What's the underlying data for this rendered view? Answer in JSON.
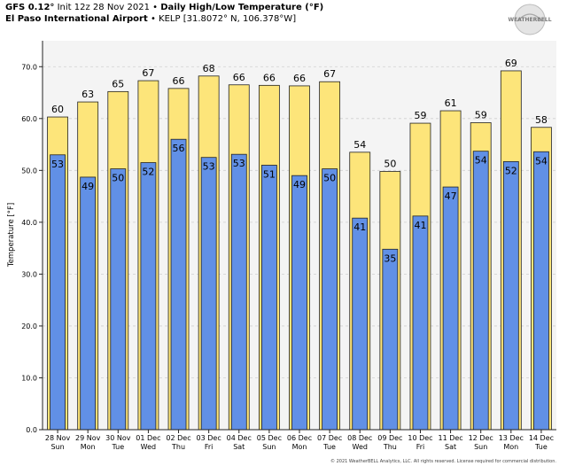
{
  "header": {
    "model": "GFS 0.12°",
    "init": "Init 12z 28 Nov 2021",
    "separator": "•",
    "product": "Daily High/Low Temperature (°F)",
    "station": "El Paso International Airport",
    "station_code": "KELP [31.8072° N, 106.378°W]"
  },
  "logo": {
    "text": "WEATHERBELL"
  },
  "copyright": "© 2021 WeatherBELL Analytics, LLC. All rights reserved. License required for commercial distribution.",
  "colors": {
    "high_bar": "#fde57a",
    "low_bar": "#6190e6",
    "bar_edge": "#222222",
    "plot_bg": "#f4f4f4",
    "grid": "#cfcfcf"
  },
  "chart_data": {
    "type": "bar",
    "title": "Daily High/Low Temperature (°F)",
    "xlabel": "",
    "ylabel": "Temperature [°F]",
    "ylim": [
      0,
      75
    ],
    "yticks": [
      "0.0",
      "10.0",
      "20.0",
      "30.0",
      "40.0",
      "50.0",
      "60.0",
      "70.0"
    ],
    "grid": true,
    "categories": [
      [
        "28 Nov",
        "Sun"
      ],
      [
        "29 Nov",
        "Mon"
      ],
      [
        "30 Nov",
        "Tue"
      ],
      [
        "01 Dec",
        "Wed"
      ],
      [
        "02 Dec",
        "Thu"
      ],
      [
        "03 Dec",
        "Fri"
      ],
      [
        "04 Dec",
        "Sat"
      ],
      [
        "05 Dec",
        "Sun"
      ],
      [
        "06 Dec",
        "Mon"
      ],
      [
        "07 Dec",
        "Tue"
      ],
      [
        "08 Dec",
        "Wed"
      ],
      [
        "09 Dec",
        "Thu"
      ],
      [
        "10 Dec",
        "Fri"
      ],
      [
        "11 Dec",
        "Sat"
      ],
      [
        "12 Dec",
        "Sun"
      ],
      [
        "13 Dec",
        "Mon"
      ],
      [
        "14 Dec",
        "Tue"
      ]
    ],
    "series": [
      {
        "name": "High",
        "labels": [
          60,
          63,
          65,
          67,
          66,
          68,
          66,
          66,
          66,
          67,
          54,
          50,
          59,
          61,
          59,
          69,
          58
        ],
        "values": [
          60.3,
          63.2,
          65.2,
          67.3,
          65.8,
          68.2,
          66.5,
          66.4,
          66.3,
          67.1,
          53.5,
          49.8,
          59.1,
          61.5,
          59.2,
          69.2,
          58.3
        ]
      },
      {
        "name": "Low",
        "labels": [
          53,
          49,
          50,
          52,
          56,
          53,
          53,
          51,
          49,
          50,
          41,
          35,
          41,
          47,
          54,
          52,
          54
        ],
        "values": [
          53.0,
          48.7,
          50.3,
          51.5,
          56.0,
          52.5,
          53.1,
          51.0,
          49.0,
          50.3,
          40.8,
          34.8,
          41.2,
          46.8,
          53.7,
          51.7,
          53.6
        ]
      }
    ]
  }
}
